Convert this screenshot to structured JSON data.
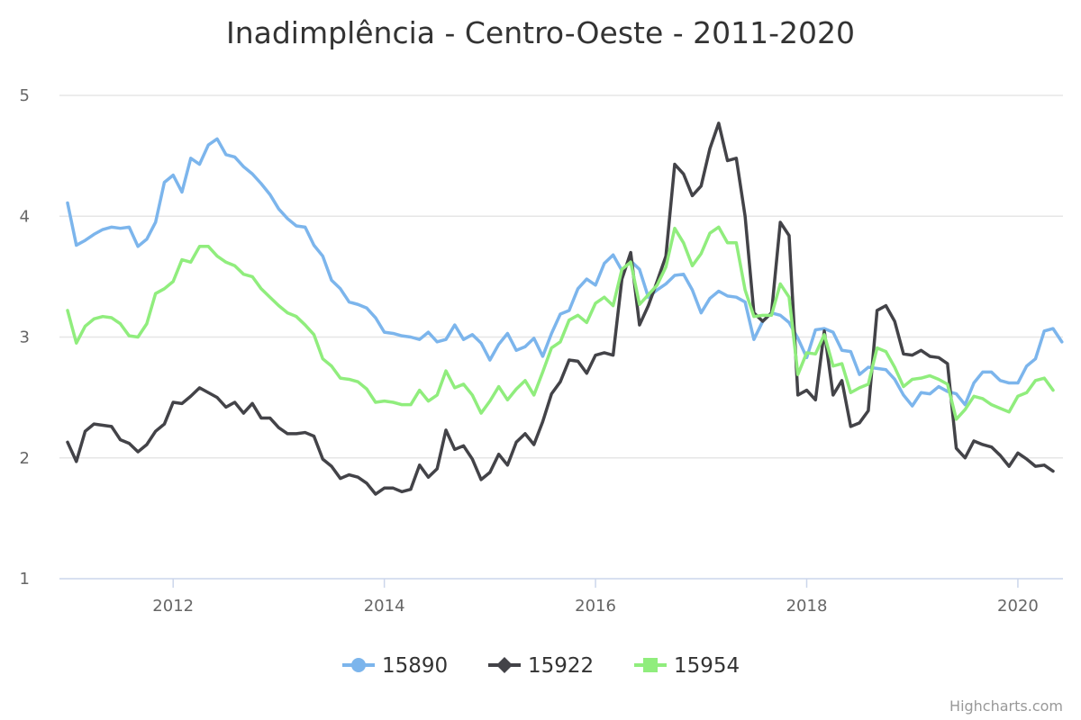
{
  "chart_data": {
    "type": "line",
    "title": "Inadimplência - Centro-Oeste - 2011-2020",
    "xlabel": "",
    "ylabel": "",
    "x_start": "2011-01",
    "x_interval": "month",
    "xlim": [
      "2011-01",
      "2020-05"
    ],
    "ylim": [
      1,
      5
    ],
    "x_ticks": [
      "2012",
      "2014",
      "2016",
      "2018",
      "2020"
    ],
    "y_ticks": [
      "1",
      "2",
      "3",
      "4",
      "5"
    ],
    "grid": "horizontal",
    "legend_position": "bottom-center",
    "credits": "Highcharts.com",
    "series": [
      {
        "name": "15890",
        "color": "#7cb5ec",
        "marker": "circle",
        "values": [
          4.11,
          3.76,
          3.8,
          3.85,
          3.89,
          3.91,
          3.9,
          3.91,
          3.75,
          3.81,
          3.95,
          4.28,
          4.34,
          4.2,
          4.48,
          4.43,
          4.59,
          4.64,
          4.51,
          4.49,
          4.41,
          4.35,
          4.27,
          4.18,
          4.06,
          3.98,
          3.92,
          3.91,
          3.76,
          3.67,
          3.47,
          3.4,
          3.29,
          3.27,
          3.24,
          3.16,
          3.04,
          3.03,
          3.01,
          3.0,
          2.98,
          3.04,
          2.96,
          2.98,
          3.1,
          2.98,
          3.02,
          2.95,
          2.81,
          2.94,
          3.03,
          2.89,
          2.92,
          2.99,
          2.84,
          3.03,
          3.19,
          3.22,
          3.4,
          3.48,
          3.43,
          3.61,
          3.68,
          3.55,
          3.63,
          3.56,
          3.33,
          3.39,
          3.44,
          3.51,
          3.52,
          3.39,
          3.2,
          3.32,
          3.38,
          3.34,
          3.33,
          3.29,
          2.98,
          3.13,
          3.2,
          3.18,
          3.12,
          2.99,
          2.83,
          3.06,
          3.07,
          3.04,
          2.89,
          2.88,
          2.69,
          2.75,
          2.74,
          2.73,
          2.65,
          2.52,
          2.43,
          2.54,
          2.53,
          2.59,
          2.55,
          2.53,
          2.44,
          2.62,
          2.71,
          2.71,
          2.64,
          2.62,
          2.62,
          2.76,
          2.82,
          3.05,
          3.07,
          2.96
        ]
      },
      {
        "name": "15922",
        "color": "#434348",
        "marker": "diamond",
        "values": [
          2.13,
          1.97,
          2.22,
          2.28,
          2.27,
          2.26,
          2.15,
          2.12,
          2.05,
          2.11,
          2.22,
          2.28,
          2.46,
          2.45,
          2.51,
          2.58,
          2.54,
          2.5,
          2.42,
          2.46,
          2.37,
          2.45,
          2.33,
          2.33,
          2.25,
          2.2,
          2.2,
          2.21,
          2.18,
          1.99,
          1.93,
          1.83,
          1.86,
          1.84,
          1.79,
          1.7,
          1.75,
          1.75,
          1.72,
          1.74,
          1.94,
          1.84,
          1.91,
          2.23,
          2.07,
          2.1,
          1.99,
          1.82,
          1.88,
          2.03,
          1.94,
          2.13,
          2.2,
          2.11,
          2.3,
          2.53,
          2.63,
          2.81,
          2.8,
          2.7,
          2.85,
          2.87,
          2.85,
          3.48,
          3.7,
          3.1,
          3.26,
          3.46,
          3.67,
          4.43,
          4.35,
          4.17,
          4.25,
          4.56,
          4.77,
          4.46,
          4.48,
          4.0,
          3.2,
          3.13,
          3.2,
          3.95,
          3.84,
          2.52,
          2.56,
          2.48,
          3.05,
          2.52,
          2.64,
          2.26,
          2.29,
          2.39,
          3.22,
          3.26,
          3.13,
          2.86,
          2.85,
          2.89,
          2.84,
          2.83,
          2.78,
          2.08,
          2.0,
          2.14,
          2.11,
          2.09,
          2.02,
          1.93,
          2.04,
          1.99,
          1.93,
          1.94,
          1.89
        ]
      },
      {
        "name": "15954",
        "color": "#90ed7d",
        "marker": "square",
        "values": [
          3.22,
          2.95,
          3.09,
          3.15,
          3.17,
          3.16,
          3.11,
          3.01,
          3.0,
          3.11,
          3.36,
          3.4,
          3.46,
          3.64,
          3.62,
          3.75,
          3.75,
          3.67,
          3.62,
          3.59,
          3.52,
          3.5,
          3.4,
          3.33,
          3.26,
          3.2,
          3.17,
          3.1,
          3.02,
          2.82,
          2.76,
          2.66,
          2.65,
          2.63,
          2.57,
          2.46,
          2.47,
          2.46,
          2.44,
          2.44,
          2.56,
          2.47,
          2.52,
          2.72,
          2.58,
          2.61,
          2.52,
          2.37,
          2.47,
          2.59,
          2.48,
          2.57,
          2.64,
          2.52,
          2.71,
          2.91,
          2.96,
          3.14,
          3.18,
          3.12,
          3.28,
          3.33,
          3.26,
          3.56,
          3.62,
          3.27,
          3.35,
          3.43,
          3.58,
          3.9,
          3.78,
          3.59,
          3.69,
          3.86,
          3.91,
          3.78,
          3.78,
          3.39,
          3.17,
          3.18,
          3.18,
          3.44,
          3.33,
          2.69,
          2.87,
          2.86,
          3.02,
          2.76,
          2.78,
          2.54,
          2.58,
          2.61,
          2.91,
          2.88,
          2.75,
          2.59,
          2.65,
          2.66,
          2.68,
          2.65,
          2.61,
          2.32,
          2.4,
          2.51,
          2.49,
          2.44,
          2.41,
          2.38,
          2.51,
          2.54,
          2.64,
          2.66,
          2.56
        ]
      }
    ]
  }
}
